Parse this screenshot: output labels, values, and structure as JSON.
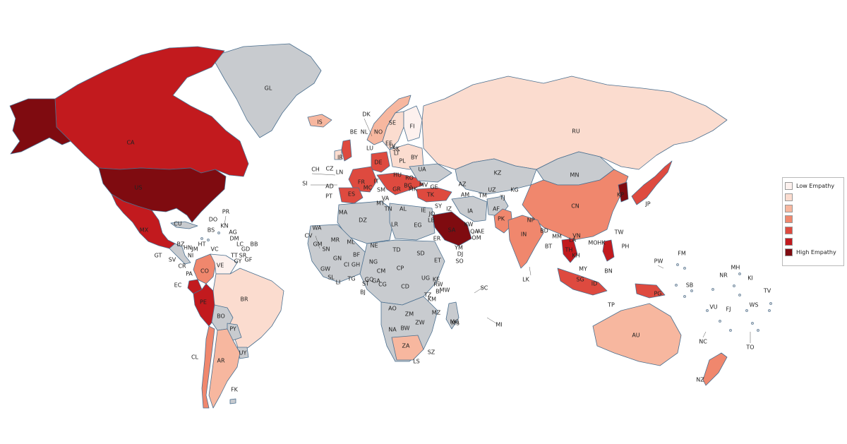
{
  "legend": {
    "items": [
      {
        "label": "Low Empathy",
        "color": "#fdf1ee"
      },
      {
        "label": "",
        "color": "#fbdccf"
      },
      {
        "label": "",
        "color": "#f7b79f"
      },
      {
        "label": "",
        "color": "#f0876d"
      },
      {
        "label": "",
        "color": "#de4a3f"
      },
      {
        "label": "",
        "color": "#c21a1e"
      },
      {
        "label": "High Empathy",
        "color": "#7f0b10"
      }
    ]
  },
  "colors": {
    "no_data": "#c8cbcf",
    "water": "#ffffff",
    "border": "#4a6f8f"
  },
  "countries": [
    {
      "code": "GL",
      "level": -1
    },
    {
      "code": "CA",
      "level": 5
    },
    {
      "code": "US",
      "level": 6
    },
    {
      "code": "MX",
      "level": 5
    },
    {
      "code": "CU",
      "level": -1
    },
    {
      "code": "BR",
      "level": 1
    },
    {
      "code": "AR",
      "level": 2
    },
    {
      "code": "CL",
      "level": 3
    },
    {
      "code": "PE",
      "level": 5
    },
    {
      "code": "CO",
      "level": 3
    },
    {
      "code": "VE",
      "level": 0
    },
    {
      "code": "EC",
      "level": 5
    },
    {
      "code": "BO",
      "level": -1
    },
    {
      "code": "PY",
      "level": -1
    },
    {
      "code": "UY",
      "level": -1
    },
    {
      "code": "FK",
      "level": -1
    },
    {
      "code": "IS",
      "level": 2
    },
    {
      "code": "NO",
      "level": 2
    },
    {
      "code": "SE",
      "level": 1
    },
    {
      "code": "FI",
      "level": 0
    },
    {
      "code": "RU",
      "level": 1
    },
    {
      "code": "KZ",
      "level": -1
    },
    {
      "code": "MN",
      "level": -1
    },
    {
      "code": "CN",
      "level": 3
    },
    {
      "code": "IN",
      "level": 3
    },
    {
      "code": "PK",
      "level": 3
    },
    {
      "code": "AF",
      "level": -1
    },
    {
      "code": "IA",
      "level": -1
    },
    {
      "code": "SA",
      "level": 6
    },
    {
      "code": "TK",
      "level": 4
    },
    {
      "code": "ES",
      "level": 4
    },
    {
      "code": "FR",
      "level": 4
    },
    {
      "code": "DE",
      "level": 4
    },
    {
      "code": "JP",
      "level": 4
    },
    {
      "code": "KP",
      "level": 6
    },
    {
      "code": "AU",
      "level": 2
    },
    {
      "code": "NZ",
      "level": 3
    },
    {
      "code": "ID",
      "level": 4
    },
    {
      "code": "PG",
      "level": 4
    },
    {
      "code": "PH",
      "level": 5
    },
    {
      "code": "TH",
      "level": 5
    },
    {
      "code": "DZ",
      "level": -1
    },
    {
      "code": "LR",
      "level": -1
    },
    {
      "code": "EG",
      "level": -1
    },
    {
      "code": "SD",
      "level": -1
    },
    {
      "code": "NE",
      "level": -1
    },
    {
      "code": "ML",
      "level": -1
    },
    {
      "code": "TD",
      "level": -1
    },
    {
      "code": "CD",
      "level": -1
    },
    {
      "code": "ZA",
      "level": 2
    },
    {
      "code": "MZ",
      "level": -1
    },
    {
      "code": "MG",
      "level": -1
    }
  ],
  "labels": {
    "GL": "GL",
    "CA": "CA",
    "US": "US",
    "MX": "MX",
    "CU": "CU",
    "BR": "BR",
    "AR": "AR",
    "CL": "CL",
    "PE": "PE",
    "CO": "CO",
    "VE": "VE",
    "EC": "EC",
    "BO": "BO",
    "PY": "PY",
    "UY": "UY",
    "FK": "FK",
    "IS": "IS",
    "NO": "NO",
    "SE": "SE",
    "FI": "FI",
    "RU": "RU",
    "KZ": "KZ",
    "MN": "MN",
    "CN": "CN",
    "IN": "IN",
    "PK": "PK",
    "AF": "AF",
    "IA": "IA",
    "SA": "SA",
    "TK": "TK",
    "ES": "ES",
    "FR": "FR",
    "DE": "DE",
    "JP": "JP",
    "KP": "KP",
    "AU": "AU",
    "NZ": "NZ",
    "ID": "ID",
    "PG": "PG",
    "PH": "PH",
    "TH": "TH",
    "DZ": "DZ",
    "LR": "LR",
    "EG": "EG",
    "SD": "SD",
    "NE": "NE",
    "ML": "ML",
    "TD": "TD",
    "CD": "CD",
    "ZA": "ZA",
    "MZ": "MZ",
    "MG": "MG",
    "PR": "PR",
    "DO": "DO",
    "KN": "KN",
    "AG": "AG",
    "DM": "DM",
    "LC": "LC",
    "BB": "BB",
    "GD": "GD",
    "TT": "TT",
    "SR": "SR",
    "GF": "GF",
    "GY": "GY",
    "HT": "HT",
    "BS": "BS",
    "JM": "JM",
    "BZ": "BZ",
    "HN": "HN",
    "NI": "NI",
    "GT": "GT",
    "SV": "SV",
    "CR": "CR",
    "PA": "PA",
    "VC": "VC",
    "DK": "DK",
    "BE": "BE",
    "NL": "NL",
    "LU": "LU",
    "EE": "EE",
    "LV": "LV",
    "LT": "LT",
    "SK": "SK",
    "BY": "BY",
    "PL": "PL",
    "UA": "UA",
    "CH": "CH",
    "CZ": "CZ",
    "LN": "LN",
    "IR": "IR",
    "SI": "SI",
    "AD": "AD",
    "PT": "PT",
    "MC": "MC",
    "HU": "HU",
    "RO": "RO",
    "GE": "GE",
    "AM": "AM",
    "AZ": "AZ",
    "MV": "MV",
    "BG": "BG",
    "MK": "MK",
    "SM": "SM",
    "VA": "VA",
    "MT": "MT",
    "TN": "TN",
    "AL": "AL",
    "IT": "IT",
    "GR": "GR",
    "TM": "TM",
    "UZ": "UZ",
    "KG": "KG",
    "TJ": "TJ",
    "IZ": "IZ",
    "SY": "SY",
    "JO": "JO",
    "IE": "IE",
    "LB": "LB",
    "KW": "KW",
    "QA": "QA",
    "AE": "AE",
    "OM": "OM",
    "YM": "YM",
    "DJ": "DJ",
    "SO": "SO",
    "ET": "ET",
    "ER": "ER",
    "NP": "NP",
    "BD": "BD",
    "BT": "BT",
    "MM": "MM",
    "LA": "LA",
    "VN": "VN",
    "KH": "KH",
    "MY": "MY",
    "SG": "SG",
    "BN": "BN",
    "TP": "TP",
    "MO": "MO",
    "HK": "HK",
    "TW": "TW",
    "LK": "LK",
    "MA": "MA",
    "WA": "WA",
    "CV": "CV",
    "MR": "MR",
    "GM": "GM",
    "SN": "SN",
    "GW": "GW",
    "GN": "GN",
    "SL": "SL",
    "LI": "LI",
    "CI": "CI",
    "BF": "BF",
    "GH": "GH",
    "TG": "TG",
    "BJ": "BJ",
    "NG": "NG",
    "ST": "ST",
    "GQ": "GQ",
    "GA": "GA",
    "CG": "CG",
    "CM": "CM",
    "CP": "CP",
    "UG": "UG",
    "KE": "KE",
    "RW": "RW",
    "BI": "BI",
    "TZ": "TZ",
    "KM": "KM",
    "MW": "MW",
    "AO": "AO",
    "ZM": "ZM",
    "ZW": "ZW",
    "NA": "NA",
    "BW": "BW",
    "SZ": "SZ",
    "LS": "LS",
    "SC": "SC",
    "MI": "MI",
    "MS": "MS",
    "PW": "PW",
    "FM": "FM",
    "MH": "MH",
    "KI": "KI",
    "NR": "NR",
    "SB": "SB",
    "TV": "TV",
    "VU": "VU",
    "WS": "WS",
    "FJ": "FJ",
    "NC": "NC",
    "TO": "TO"
  }
}
